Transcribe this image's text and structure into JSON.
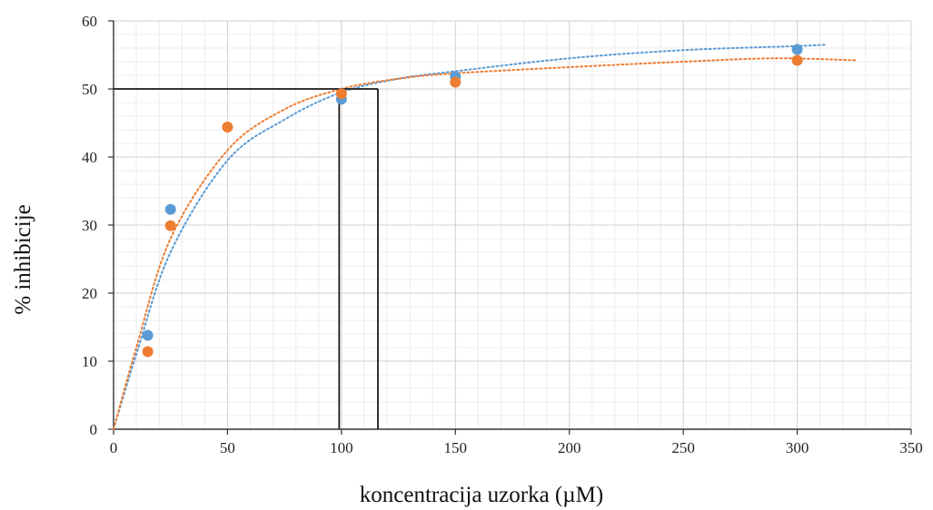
{
  "chart_data": {
    "type": "scatter",
    "title": "",
    "xlabel": "koncentracija uzorka (µM)",
    "ylabel": "% inhibicije",
    "xlim": [
      0,
      350
    ],
    "ylim": [
      0,
      60
    ],
    "xticks": [
      "0",
      "50",
      "100",
      "150",
      "200",
      "250",
      "300",
      "350"
    ],
    "yticks": [
      "0",
      "10",
      "20",
      "30",
      "40",
      "50",
      "60"
    ],
    "grid": true,
    "legend": "none",
    "series": [
      {
        "color": "#5b9bd5",
        "points": [
          {
            "x": 15,
            "y": 13.8
          },
          {
            "x": 25,
            "y": 32.3
          },
          {
            "x": 100,
            "y": 48.5
          },
          {
            "x": 150,
            "y": 51.8
          },
          {
            "x": 300,
            "y": 55.8
          }
        ],
        "trendline": {
          "style": "dotted",
          "points": [
            [
              0,
              0
            ],
            [
              10,
              11
            ],
            [
              25,
              26
            ],
            [
              50,
              39.5
            ],
            [
              75,
              45.5
            ],
            [
              100,
              49.5
            ],
            [
              125,
              51.5
            ],
            [
              150,
              52.6
            ],
            [
              200,
              54.5
            ],
            [
              250,
              55.7
            ],
            [
              300,
              56.3
            ],
            [
              313,
              56.5
            ]
          ]
        }
      },
      {
        "color": "#ed7d31",
        "points": [
          {
            "x": 15,
            "y": 11.4
          },
          {
            "x": 25,
            "y": 29.9
          },
          {
            "x": 50,
            "y": 44.4
          },
          {
            "x": 100,
            "y": 49.3
          },
          {
            "x": 150,
            "y": 51.0
          },
          {
            "x": 300,
            "y": 54.2
          }
        ],
        "trendline": {
          "style": "dotted",
          "points": [
            [
              0,
              0
            ],
            [
              10,
              12
            ],
            [
              25,
              28
            ],
            [
              50,
              41
            ],
            [
              75,
              47
            ],
            [
              100,
              50
            ],
            [
              125,
              51.5
            ],
            [
              150,
              52.3
            ],
            [
              200,
              53.2
            ],
            [
              250,
              54
            ],
            [
              290,
              54.5
            ],
            [
              326,
              54.2
            ]
          ]
        }
      }
    ],
    "reference_lines": [
      {
        "type": "horizontal",
        "y": 50,
        "x_from": 0,
        "x_to": 116
      },
      {
        "type": "vertical",
        "x": 99,
        "y_from": 0,
        "y_to": 50
      },
      {
        "type": "vertical",
        "x": 116,
        "y_from": 0,
        "y_to": 50
      }
    ]
  }
}
